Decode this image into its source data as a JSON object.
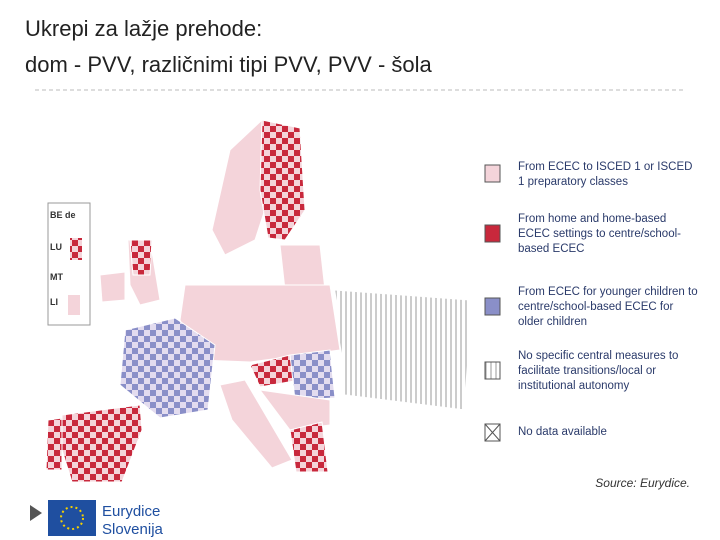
{
  "title": {
    "line1": "Ukrepi za lažje prehode:",
    "line2": "dom - PVV, različnimi tipi PVV, PVV - šola"
  },
  "map": {
    "insets": [
      "BE de",
      "LU",
      "MT",
      "LI"
    ]
  },
  "legend": [
    {
      "text": "From ECEC to ISCED 1 or ISCED 1 preparatory classes"
    },
    {
      "text": "From home and home-based ECEC settings to centre/school-based ECEC"
    },
    {
      "text": "From ECEC for younger children to centre/school-based ECEC for older children"
    },
    {
      "text": "No specific central measures to facilitate transitions/local or institutional autonomy"
    },
    {
      "text": "No data available"
    }
  ],
  "source": "Source: Eurydice.",
  "logo": {
    "name": "Eurydice",
    "country": "Slovenija"
  }
}
